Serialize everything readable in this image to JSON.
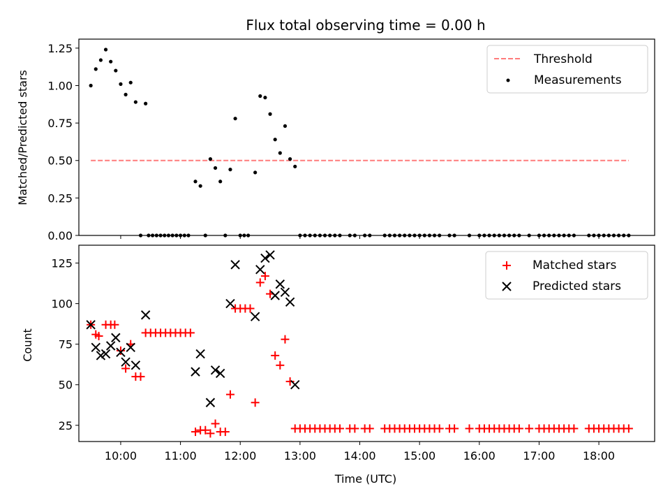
{
  "chart_data": [
    {
      "type": "scatter",
      "title": "Flux total observing time = 0.00 h",
      "xlabel": "",
      "ylabel": "Matched/Predicted stars",
      "xlim": [
        "09:18",
        "18:56"
      ],
      "ylim": [
        0,
        1.31
      ],
      "yticks": [
        0.0,
        0.25,
        0.5,
        0.75,
        1.0,
        1.25
      ],
      "ytick_labels": [
        "0.00",
        "0.25",
        "0.50",
        "0.75",
        "1.00",
        "1.25"
      ],
      "grid": false,
      "legend": {
        "position": "top-right",
        "entries": [
          {
            "label": "Threshold",
            "marker": "dashed-line",
            "color": "#ff7b7b"
          },
          {
            "label": "Measurements",
            "marker": "dot",
            "color": "#000000"
          }
        ]
      },
      "threshold": {
        "value": 0.5,
        "x_start": "09:30",
        "x_end": "18:30",
        "color": "#ff7b7b"
      },
      "series": [
        {
          "name": "Measurements",
          "color": "#000000",
          "points": [
            [
              "09:30",
              1.0
            ],
            [
              "09:35",
              1.11
            ],
            [
              "09:40",
              1.17
            ],
            [
              "09:45",
              1.24
            ],
            [
              "09:50",
              1.16
            ],
            [
              "09:55",
              1.1
            ],
            [
              "10:00",
              1.01
            ],
            [
              "10:05",
              0.94
            ],
            [
              "10:10",
              1.02
            ],
            [
              "10:15",
              0.89
            ],
            [
              "10:25",
              0.88
            ],
            [
              "10:20",
              0
            ],
            [
              "10:28",
              0
            ],
            [
              "10:32",
              0
            ],
            [
              "10:36",
              0
            ],
            [
              "10:40",
              0
            ],
            [
              "10:44",
              0
            ],
            [
              "10:48",
              0
            ],
            [
              "10:52",
              0
            ],
            [
              "10:56",
              0
            ],
            [
              "11:00",
              0
            ],
            [
              "11:04",
              0
            ],
            [
              "11:08",
              0
            ],
            [
              "11:15",
              0.36
            ],
            [
              "11:20",
              0.33
            ],
            [
              "11:25",
              0
            ],
            [
              "11:30",
              0.51
            ],
            [
              "11:35",
              0.45
            ],
            [
              "11:40",
              0.36
            ],
            [
              "11:45",
              0
            ],
            [
              "11:50",
              0.44
            ],
            [
              "11:55",
              0.78
            ],
            [
              "12:00",
              0
            ],
            [
              "12:04",
              0
            ],
            [
              "12:08",
              0
            ],
            [
              "12:15",
              0.42
            ],
            [
              "12:20",
              0.93
            ],
            [
              "12:25",
              0.92
            ],
            [
              "12:30",
              0.81
            ],
            [
              "12:35",
              0.64
            ],
            [
              "12:40",
              0.55
            ],
            [
              "12:45",
              0.73
            ],
            [
              "12:50",
              0.51
            ],
            [
              "12:55",
              0.46
            ],
            [
              "13:00",
              0
            ],
            [
              "13:05",
              0
            ],
            [
              "13:10",
              0
            ],
            [
              "13:15",
              0
            ],
            [
              "13:20",
              0
            ],
            [
              "13:25",
              0
            ],
            [
              "13:30",
              0
            ],
            [
              "13:35",
              0
            ],
            [
              "13:40",
              0
            ],
            [
              "13:50",
              0
            ],
            [
              "13:55",
              0
            ],
            [
              "14:05",
              0
            ],
            [
              "14:10",
              0
            ],
            [
              "14:25",
              0
            ],
            [
              "14:30",
              0
            ],
            [
              "14:35",
              0
            ],
            [
              "14:40",
              0
            ],
            [
              "14:45",
              0
            ],
            [
              "14:50",
              0
            ],
            [
              "14:55",
              0
            ],
            [
              "15:00",
              0
            ],
            [
              "15:05",
              0
            ],
            [
              "15:10",
              0
            ],
            [
              "15:15",
              0
            ],
            [
              "15:20",
              0
            ],
            [
              "15:30",
              0
            ],
            [
              "15:35",
              0
            ],
            [
              "15:50",
              0
            ],
            [
              "16:00",
              0
            ],
            [
              "16:05",
              0
            ],
            [
              "16:10",
              0
            ],
            [
              "16:15",
              0
            ],
            [
              "16:20",
              0
            ],
            [
              "16:25",
              0
            ],
            [
              "16:30",
              0
            ],
            [
              "16:35",
              0
            ],
            [
              "16:40",
              0
            ],
            [
              "16:50",
              0
            ],
            [
              "17:00",
              0
            ],
            [
              "17:05",
              0
            ],
            [
              "17:10",
              0
            ],
            [
              "17:15",
              0
            ],
            [
              "17:20",
              0
            ],
            [
              "17:25",
              0
            ],
            [
              "17:30",
              0
            ],
            [
              "17:35",
              0
            ],
            [
              "17:50",
              0
            ],
            [
              "17:55",
              0
            ],
            [
              "18:00",
              0
            ],
            [
              "18:05",
              0
            ],
            [
              "18:10",
              0
            ],
            [
              "18:15",
              0
            ],
            [
              "18:20",
              0
            ],
            [
              "18:25",
              0
            ],
            [
              "18:30",
              0
            ]
          ]
        }
      ]
    },
    {
      "type": "scatter",
      "title": "",
      "xlabel": "Time (UTC)",
      "ylabel": "Count",
      "xlim": [
        "09:18",
        "18:56"
      ],
      "ylim": [
        15,
        136
      ],
      "yticks": [
        25,
        50,
        75,
        100,
        125
      ],
      "ytick_labels": [
        "25",
        "50",
        "75",
        "100",
        "125"
      ],
      "xticks": [
        "10:00",
        "11:00",
        "12:00",
        "13:00",
        "14:00",
        "15:00",
        "16:00",
        "17:00",
        "18:00"
      ],
      "grid": false,
      "legend": {
        "position": "top-right",
        "entries": [
          {
            "label": "Matched stars",
            "marker": "plus",
            "color": "#ff0000"
          },
          {
            "label": "Predicted stars",
            "marker": "x",
            "color": "#000000"
          }
        ]
      },
      "series": [
        {
          "name": "Matched stars",
          "color": "#ff0000",
          "points": [
            [
              "09:30",
              87
            ],
            [
              "09:35",
              81
            ],
            [
              "09:38",
              80
            ],
            [
              "09:45",
              87
            ],
            [
              "09:50",
              87
            ],
            [
              "09:54",
              87
            ],
            [
              "10:00",
              71
            ],
            [
              "10:05",
              60
            ],
            [
              "10:10",
              75
            ],
            [
              "10:15",
              55
            ],
            [
              "10:20",
              55
            ],
            [
              "10:25",
              82
            ],
            [
              "10:30",
              82
            ],
            [
              "10:35",
              82
            ],
            [
              "10:40",
              82
            ],
            [
              "10:45",
              82
            ],
            [
              "10:50",
              82
            ],
            [
              "10:55",
              82
            ],
            [
              "11:00",
              82
            ],
            [
              "11:05",
              82
            ],
            [
              "11:10",
              82
            ],
            [
              "11:15",
              21
            ],
            [
              "11:20",
              22
            ],
            [
              "11:25",
              22
            ],
            [
              "11:30",
              20
            ],
            [
              "11:35",
              26
            ],
            [
              "11:40",
              21
            ],
            [
              "11:45",
              21
            ],
            [
              "11:50",
              44
            ],
            [
              "11:55",
              97
            ],
            [
              "12:00",
              97
            ],
            [
              "12:05",
              97
            ],
            [
              "12:10",
              97
            ],
            [
              "12:15",
              39
            ],
            [
              "12:20",
              113
            ],
            [
              "12:25",
              117
            ],
            [
              "12:30",
              106
            ],
            [
              "12:35",
              68
            ],
            [
              "12:40",
              62
            ],
            [
              "12:45",
              78
            ],
            [
              "12:50",
              52
            ],
            [
              "12:55",
              23
            ],
            [
              "13:00",
              23
            ],
            [
              "13:05",
              23
            ],
            [
              "13:10",
              23
            ],
            [
              "13:15",
              23
            ],
            [
              "13:20",
              23
            ],
            [
              "13:25",
              23
            ],
            [
              "13:30",
              23
            ],
            [
              "13:35",
              23
            ],
            [
              "13:40",
              23
            ],
            [
              "13:50",
              23
            ],
            [
              "13:55",
              23
            ],
            [
              "14:05",
              23
            ],
            [
              "14:10",
              23
            ],
            [
              "14:25",
              23
            ],
            [
              "14:30",
              23
            ],
            [
              "14:35",
              23
            ],
            [
              "14:40",
              23
            ],
            [
              "14:45",
              23
            ],
            [
              "14:50",
              23
            ],
            [
              "14:55",
              23
            ],
            [
              "15:00",
              23
            ],
            [
              "15:05",
              23
            ],
            [
              "15:10",
              23
            ],
            [
              "15:15",
              23
            ],
            [
              "15:20",
              23
            ],
            [
              "15:30",
              23
            ],
            [
              "15:35",
              23
            ],
            [
              "15:50",
              23
            ],
            [
              "16:00",
              23
            ],
            [
              "16:05",
              23
            ],
            [
              "16:10",
              23
            ],
            [
              "16:15",
              23
            ],
            [
              "16:20",
              23
            ],
            [
              "16:25",
              23
            ],
            [
              "16:30",
              23
            ],
            [
              "16:35",
              23
            ],
            [
              "16:40",
              23
            ],
            [
              "16:50",
              23
            ],
            [
              "17:00",
              23
            ],
            [
              "17:05",
              23
            ],
            [
              "17:10",
              23
            ],
            [
              "17:15",
              23
            ],
            [
              "17:20",
              23
            ],
            [
              "17:25",
              23
            ],
            [
              "17:30",
              23
            ],
            [
              "17:35",
              23
            ],
            [
              "17:50",
              23
            ],
            [
              "17:55",
              23
            ],
            [
              "18:00",
              23
            ],
            [
              "18:05",
              23
            ],
            [
              "18:10",
              23
            ],
            [
              "18:15",
              23
            ],
            [
              "18:20",
              23
            ],
            [
              "18:25",
              23
            ],
            [
              "18:30",
              23
            ]
          ]
        },
        {
          "name": "Predicted stars",
          "color": "#000000",
          "points": [
            [
              "09:30",
              87
            ],
            [
              "09:35",
              73
            ],
            [
              "09:40",
              68
            ],
            [
              "09:45",
              69
            ],
            [
              "09:50",
              74
            ],
            [
              "09:55",
              79
            ],
            [
              "10:00",
              70
            ],
            [
              "10:05",
              64
            ],
            [
              "10:10",
              73
            ],
            [
              "10:15",
              62
            ],
            [
              "10:25",
              93
            ],
            [
              "11:15",
              58
            ],
            [
              "11:20",
              69
            ],
            [
              "11:30",
              39
            ],
            [
              "11:35",
              59
            ],
            [
              "11:40",
              57
            ],
            [
              "11:50",
              100
            ],
            [
              "11:55",
              124
            ],
            [
              "12:15",
              92
            ],
            [
              "12:20",
              121
            ],
            [
              "12:25",
              128
            ],
            [
              "12:30",
              130
            ],
            [
              "12:35",
              105
            ],
            [
              "12:40",
              112
            ],
            [
              "12:45",
              107
            ],
            [
              "12:50",
              101
            ],
            [
              "12:55",
              50
            ]
          ]
        }
      ]
    }
  ]
}
